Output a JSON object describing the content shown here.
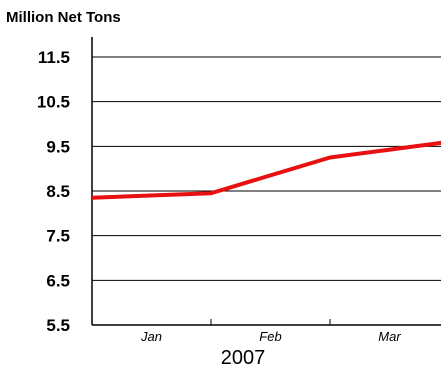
{
  "chart_data": {
    "type": "line",
    "ylabel": "Million Net Tons",
    "xlabel": "2007",
    "ylim": [
      5.5,
      11.5
    ],
    "y_ticks": [
      "11.5",
      "10.5",
      "9.5",
      "8.5",
      "7.5",
      "6.5",
      "5.5"
    ],
    "y_tick_values": [
      11.5,
      10.5,
      9.5,
      8.5,
      7.5,
      6.5,
      5.5
    ],
    "categories": [
      "Jan",
      "Feb",
      "Mar"
    ],
    "grid": true,
    "series": [
      {
        "x": [
          0,
          1,
          2,
          3
        ],
        "values": [
          8.35,
          8.45,
          9.25,
          9.6
        ],
        "color": "#e81010"
      }
    ]
  }
}
